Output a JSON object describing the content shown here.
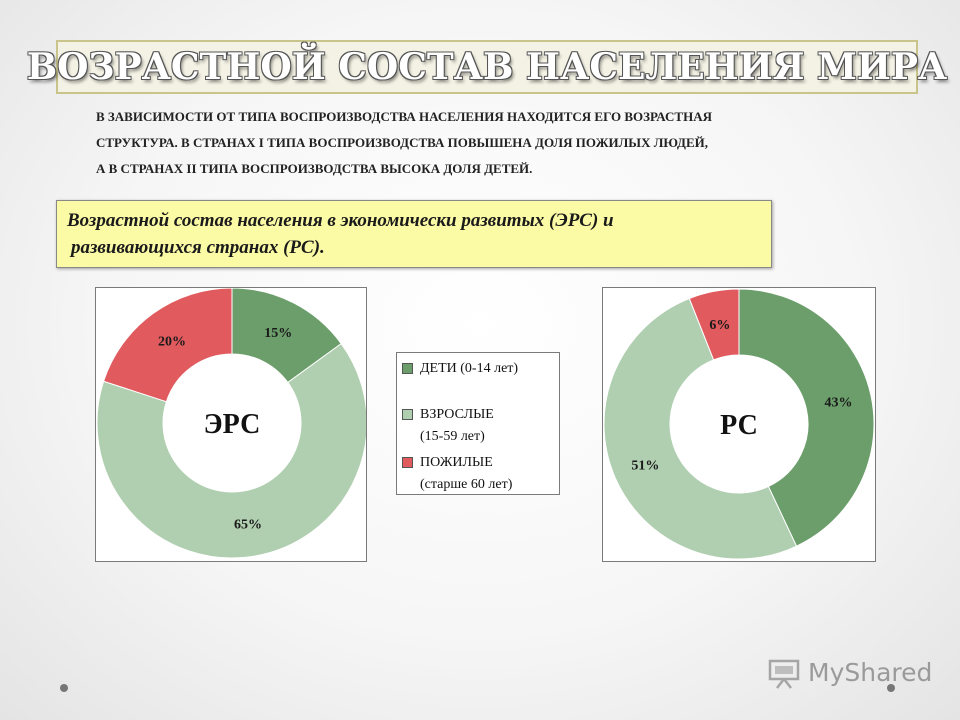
{
  "slide": {
    "title": "ВОЗРАСТНОЙ СОСТАВ НАСЕЛЕНИЯ МИРА",
    "intro_lines": [
      "В зависимости от типа воспроизводства населения находится его возрастная",
      "структура. В странах I типа воспроизводства повышена доля пожилых людей,",
      "а в странах II типа воспроизводства высока доля детей."
    ],
    "caption_lines": [
      "Возрастной состав населения в экономически развитых (ЭРС) и",
      "развивающихся странах (РС)."
    ]
  },
  "legend": [
    {
      "line1": "ДЕТИ (0-14 лет)",
      "line2": "",
      "color": "#6b9e6b"
    },
    {
      "line1": "ВЗРОСЛЫЕ",
      "line2": "(15-59 лет)",
      "color": "#b0ceb0"
    },
    {
      "line1": "ПОЖИЛЫЕ",
      "line2": "(старше 60 лет)",
      "color": "#e05a5e"
    }
  ],
  "chart_data": [
    {
      "type": "pie",
      "title": "ЭРС",
      "categories": [
        "ДЕТИ (0-14 лет)",
        "ВЗРОСЛЫЕ (15-59 лет)",
        "ПОЖИЛЫЕ (старше 60 лет)"
      ],
      "values": [
        15,
        65,
        20
      ],
      "labels": [
        "15%",
        "65%",
        "20%"
      ],
      "colors": [
        "#6b9e6b",
        "#b0ceb0",
        "#e05a5e"
      ],
      "donut": true
    },
    {
      "type": "pie",
      "title": "РС",
      "categories": [
        "ДЕТИ (0-14 лет)",
        "ВЗРОСЛЫЕ (15-59 лет)",
        "ПОЖИЛЫЕ (старше 60 лет)"
      ],
      "values": [
        43,
        51,
        6
      ],
      "labels": [
        "43%",
        "51%",
        "6%"
      ],
      "colors": [
        "#6b9e6b",
        "#b0ceb0",
        "#e05a5e"
      ],
      "donut": true
    }
  ],
  "watermark": {
    "text": "MyShared"
  }
}
